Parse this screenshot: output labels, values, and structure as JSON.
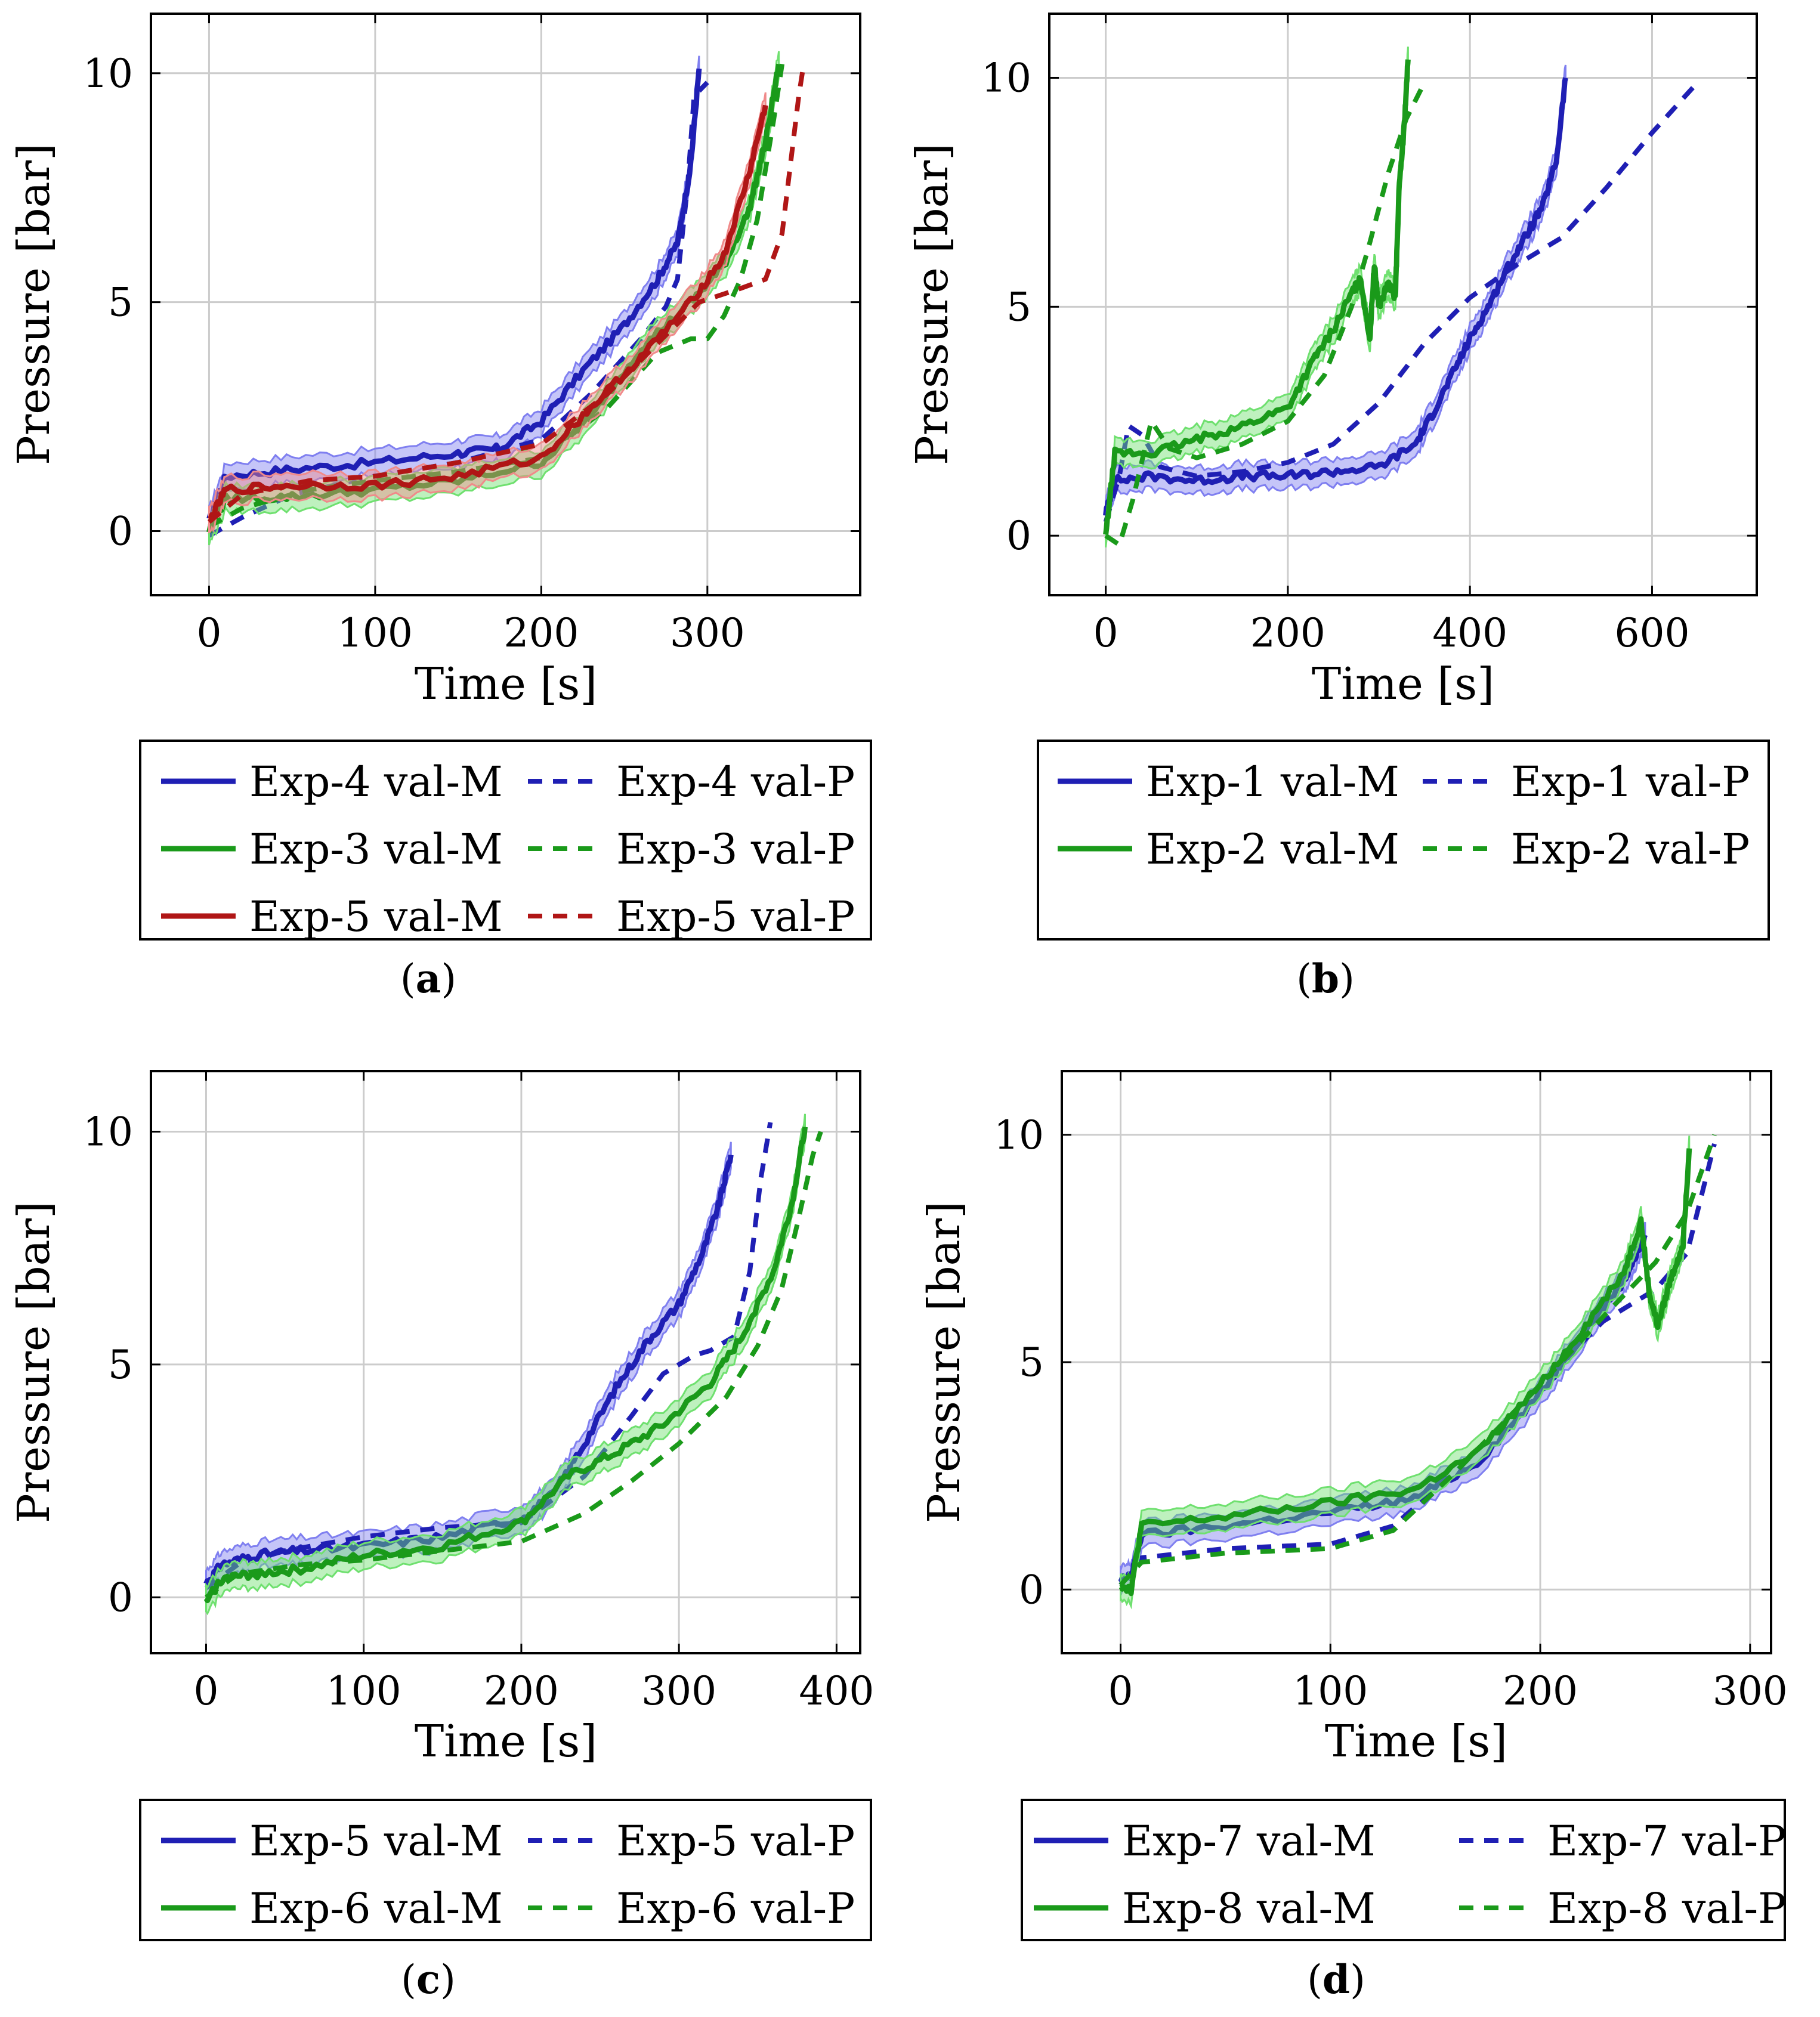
{
  "chart_data": [
    {
      "type": "line",
      "caption": "a",
      "xlabel": "Time [s]",
      "ylabel": "Pressure [bar]",
      "xlim": [
        -35,
        392
      ],
      "ylim": [
        -1.4,
        11.3
      ],
      "xticks": [
        0,
        100,
        200,
        300
      ],
      "yticks": [
        0,
        5,
        10
      ],
      "grid": true,
      "legend_columns": 2,
      "legend_position": "below",
      "series": [
        {
          "name": "Exp-4 val-M",
          "color": "#1f1fb4",
          "style": "solid",
          "band": true,
          "x": [
            0,
            10,
            50,
            100,
            150,
            175,
            200,
            225,
            250,
            270,
            282,
            290,
            295
          ],
          "y": [
            0.2,
            1.2,
            1.35,
            1.5,
            1.7,
            1.8,
            2.4,
            3.5,
            4.5,
            5.5,
            6.3,
            8.0,
            10.1
          ]
        },
        {
          "name": "Exp-4 val-P",
          "color": "#1f1fb4",
          "style": "dashed",
          "band": false,
          "x": [
            0,
            20,
            50,
            100,
            150,
            200,
            230,
            260,
            275,
            282,
            288,
            292,
            300
          ],
          "y": [
            -0.1,
            0.3,
            0.8,
            1.2,
            1.5,
            2.0,
            3.0,
            4.2,
            4.9,
            5.5,
            7.5,
            9.5,
            9.8
          ]
        },
        {
          "name": "Exp-3 val-M",
          "color": "#1a9a1a",
          "style": "solid",
          "band": true,
          "x": [
            0,
            10,
            50,
            100,
            150,
            200,
            230,
            260,
            290,
            310,
            325,
            335,
            343
          ],
          "y": [
            0.0,
            0.7,
            0.75,
            0.9,
            1.1,
            1.5,
            2.5,
            4.0,
            5.0,
            5.8,
            7.0,
            8.5,
            10.2
          ]
        },
        {
          "name": "Exp-3 val-P",
          "color": "#1a9a1a",
          "style": "dashed",
          "band": false,
          "x": [
            0,
            20,
            60,
            100,
            150,
            200,
            240,
            270,
            290,
            300,
            310,
            320,
            330,
            340,
            345
          ],
          "y": [
            0.1,
            0.5,
            0.9,
            1.1,
            1.3,
            1.6,
            2.7,
            3.9,
            4.2,
            4.2,
            4.7,
            5.5,
            6.8,
            9.0,
            10.2
          ]
        },
        {
          "name": "Exp-5 val-M",
          "color": "#b01616",
          "style": "solid",
          "band": true,
          "x": [
            0,
            10,
            50,
            100,
            150,
            200,
            230,
            260,
            290,
            310,
            325,
            335
          ],
          "y": [
            0.2,
            0.9,
            1.0,
            1.0,
            1.2,
            1.6,
            2.7,
            3.8,
            5.0,
            6.0,
            7.8,
            9.3
          ]
        },
        {
          "name": "Exp-5 val-P",
          "color": "#b01616",
          "style": "dashed",
          "band": false,
          "x": [
            0,
            20,
            60,
            100,
            150,
            200,
            240,
            270,
            295,
            320,
            335,
            345,
            350,
            355,
            358
          ],
          "y": [
            0.2,
            0.8,
            1.1,
            1.2,
            1.5,
            1.9,
            3.0,
            4.1,
            5.0,
            5.3,
            5.5,
            6.5,
            8.0,
            9.5,
            10.2
          ]
        }
      ]
    },
    {
      "type": "line",
      "caption": "b",
      "xlabel": "Time [s]",
      "ylabel": "Pressure [bar]",
      "xlim": [
        -62,
        715
      ],
      "ylim": [
        -1.3,
        11.4
      ],
      "xticks": [
        0,
        200,
        400,
        600
      ],
      "yticks": [
        0,
        5,
        10
      ],
      "grid": true,
      "legend_columns": 2,
      "legend_position": "below",
      "series": [
        {
          "name": "Exp-1 val-M",
          "color": "#1f1fb4",
          "style": "solid",
          "band": true,
          "x": [
            0,
            10,
            50,
            100,
            150,
            200,
            250,
            300,
            340,
            360,
            380,
            400,
            420,
            440,
            460,
            480,
            495,
            505
          ],
          "y": [
            0.5,
            1.2,
            1.3,
            1.2,
            1.3,
            1.3,
            1.4,
            1.5,
            2.0,
            2.7,
            3.5,
            4.3,
            5.0,
            5.8,
            6.5,
            7.2,
            8.2,
            10.0
          ]
        },
        {
          "name": "Exp-1 val-P",
          "color": "#1f1fb4",
          "style": "dashed",
          "band": false,
          "x": [
            0,
            15,
            25,
            40,
            60,
            100,
            150,
            200,
            250,
            300,
            350,
            400,
            450,
            500,
            550,
            600,
            650
          ],
          "y": [
            0.3,
            1.3,
            2.4,
            2.2,
            1.5,
            1.3,
            1.4,
            1.6,
            2.0,
            2.9,
            4.2,
            5.2,
            5.9,
            6.5,
            7.6,
            8.8,
            9.9
          ]
        },
        {
          "name": "Exp-2 val-M",
          "color": "#1a9a1a",
          "style": "solid",
          "band": true,
          "x": [
            0,
            10,
            50,
            100,
            150,
            200,
            230,
            250,
            270,
            280,
            290,
            295,
            300,
            310,
            318,
            322,
            328,
            332
          ],
          "y": [
            0.0,
            1.8,
            1.8,
            2.1,
            2.4,
            2.8,
            3.9,
            4.5,
            5.3,
            5.6,
            4.3,
            5.9,
            5.0,
            5.5,
            5.2,
            7.5,
            9.0,
            10.4
          ]
        },
        {
          "name": "Exp-2 val-P",
          "color": "#1a9a1a",
          "style": "dashed",
          "band": false,
          "x": [
            0,
            15,
            30,
            50,
            70,
            100,
            150,
            200,
            240,
            270,
            290,
            310,
            330,
            350
          ],
          "y": [
            0.0,
            -0.2,
            0.8,
            2.5,
            1.9,
            1.7,
            2.0,
            2.5,
            3.5,
            5.0,
            6.4,
            7.9,
            9.1,
            9.9
          ]
        }
      ]
    },
    {
      "type": "line",
      "caption": "c",
      "xlabel": "Time [s]",
      "ylabel": "Pressure [bar]",
      "xlim": [
        -35,
        415
      ],
      "ylim": [
        -1.2,
        11.3
      ],
      "xticks": [
        0,
        100,
        200,
        300,
        400
      ],
      "yticks": [
        0,
        5,
        10
      ],
      "grid": true,
      "legend_columns": 2,
      "legend_position": "below",
      "series": [
        {
          "name": "Exp-5 val-M",
          "color": "#1f1fb4",
          "style": "solid",
          "band": true,
          "x": [
            0,
            10,
            30,
            60,
            100,
            150,
            200,
            220,
            240,
            260,
            280,
            300,
            315,
            325,
            333
          ],
          "y": [
            0.3,
            0.7,
            0.9,
            1.0,
            1.1,
            1.3,
            1.7,
            2.2,
            3.3,
            4.5,
            5.5,
            6.3,
            7.4,
            8.4,
            9.5
          ]
        },
        {
          "name": "Exp-5 val-P",
          "color": "#1f1fb4",
          "style": "dashed",
          "band": false,
          "x": [
            0,
            20,
            50,
            100,
            150,
            200,
            240,
            270,
            290,
            310,
            320,
            335,
            345,
            352,
            358
          ],
          "y": [
            0.2,
            0.7,
            1.0,
            1.3,
            1.5,
            1.6,
            2.6,
            3.9,
            4.8,
            5.2,
            5.3,
            5.6,
            7.0,
            9.0,
            10.2
          ]
        },
        {
          "name": "Exp-6 val-M",
          "color": "#1a9a1a",
          "style": "solid",
          "band": true,
          "x": [
            0,
            10,
            30,
            60,
            100,
            150,
            200,
            230,
            260,
            290,
            320,
            340,
            360,
            372,
            380
          ],
          "y": [
            -0.1,
            0.4,
            0.5,
            0.6,
            0.9,
            1.1,
            1.6,
            2.6,
            3.1,
            3.7,
            4.6,
            5.6,
            7.0,
            8.5,
            10.1
          ]
        },
        {
          "name": "Exp-6 val-P",
          "color": "#1a9a1a",
          "style": "dashed",
          "band": false,
          "x": [
            0,
            20,
            60,
            100,
            150,
            200,
            240,
            270,
            300,
            330,
            350,
            365,
            375,
            385,
            390
          ],
          "y": [
            0.0,
            0.5,
            0.7,
            0.8,
            1.0,
            1.2,
            1.8,
            2.5,
            3.3,
            4.3,
            5.4,
            6.6,
            8.0,
            9.5,
            10.0
          ]
        }
      ]
    },
    {
      "type": "line",
      "caption": "d",
      "xlabel": "Time [s]",
      "ylabel": "Pressure [bar]",
      "xlim": [
        -28,
        310
      ],
      "ylim": [
        -1.4,
        11.4
      ],
      "xticks": [
        0,
        100,
        200,
        300
      ],
      "yticks": [
        0,
        5,
        10
      ],
      "grid": true,
      "legend_columns": 2,
      "legend_position": "below",
      "series": [
        {
          "name": "Exp-7 val-M",
          "color": "#1f1fb4",
          "style": "solid",
          "band": true,
          "x": [
            0,
            5,
            10,
            50,
            100,
            140,
            170,
            200,
            220,
            240,
            245,
            250
          ],
          "y": [
            0.2,
            0.3,
            1.2,
            1.4,
            1.7,
            2.0,
            2.8,
            4.3,
            5.6,
            6.8,
            7.3,
            7.8
          ]
        },
        {
          "name": "Exp-7 val-P",
          "color": "#1f1fb4",
          "style": "dashed",
          "band": false,
          "x": [
            0,
            10,
            50,
            100,
            130,
            160,
            200,
            230,
            255,
            270,
            283
          ],
          "y": [
            0.1,
            0.7,
            0.9,
            1.0,
            1.4,
            2.6,
            4.5,
            5.9,
            6.6,
            7.4,
            9.8
          ]
        },
        {
          "name": "Exp-8 val-M",
          "color": "#1a9a1a",
          "style": "solid",
          "band": true,
          "x": [
            0,
            5,
            10,
            50,
            100,
            140,
            170,
            200,
            220,
            240,
            248,
            252,
            256,
            262,
            268,
            271
          ],
          "y": [
            0.1,
            0.0,
            1.4,
            1.6,
            1.9,
            2.2,
            3.0,
            4.5,
            5.7,
            7.0,
            8.1,
            6.5,
            5.8,
            6.8,
            7.6,
            9.7
          ]
        },
        {
          "name": "Exp-8 val-P",
          "color": "#1a9a1a",
          "style": "dashed",
          "band": false,
          "x": [
            0,
            10,
            50,
            100,
            130,
            160,
            200,
            230,
            255,
            270,
            283
          ],
          "y": [
            0.1,
            0.6,
            0.8,
            0.9,
            1.3,
            2.6,
            4.5,
            6.0,
            7.2,
            8.3,
            10.0
          ]
        }
      ]
    }
  ]
}
